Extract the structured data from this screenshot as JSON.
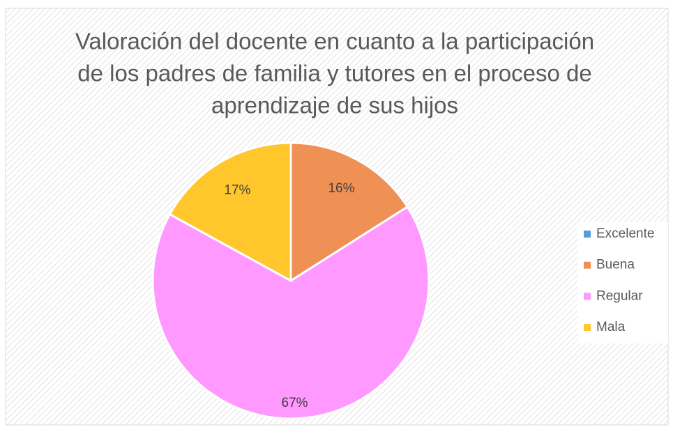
{
  "chart_data": {
    "type": "pie",
    "title": [
      "Valoración del docente en cuanto a la participación",
      "de los padres de familia y tutores en el proceso de",
      "aprendizaje de sus hijos"
    ],
    "categories": [
      "Excelente",
      "Buena",
      "Regular",
      "Mala"
    ],
    "values": [
      0,
      16,
      67,
      17
    ],
    "value_labels": [
      null,
      "16%",
      "67%",
      "17%"
    ],
    "colors": [
      "#5b9bd5",
      "#ef9055",
      "#ff99ff",
      "#ffc72c"
    ],
    "legend": "right"
  }
}
